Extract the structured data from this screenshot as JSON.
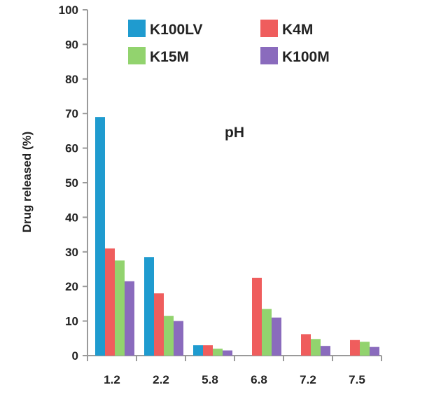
{
  "chart_data": {
    "type": "bar",
    "title": "",
    "xlabel": "",
    "ylabel": "Drug released (%)",
    "annotation": "pH",
    "categories": [
      "1.2",
      "2.2",
      "5.8",
      "6.8",
      "7.2",
      "7.5"
    ],
    "ylim": [
      0,
      100
    ],
    "yticks": [
      0,
      10,
      20,
      30,
      40,
      50,
      60,
      70,
      80,
      90,
      100
    ],
    "grid": false,
    "legend_position": "top",
    "series": [
      {
        "name": "K100LV",
        "color": "#1f9bcf",
        "values": [
          69,
          28.5,
          3,
          0,
          0,
          0
        ]
      },
      {
        "name": "K4M",
        "color": "#ef5d5d",
        "values": [
          31,
          18,
          3,
          22.5,
          6.2,
          4.5
        ]
      },
      {
        "name": "K15M",
        "color": "#92d36e",
        "values": [
          27.5,
          11.5,
          2,
          13.5,
          4.8,
          4
        ]
      },
      {
        "name": "K100M",
        "color": "#8a6bbd",
        "values": [
          21.5,
          10,
          1.5,
          11,
          2.8,
          2.5
        ]
      }
    ]
  }
}
